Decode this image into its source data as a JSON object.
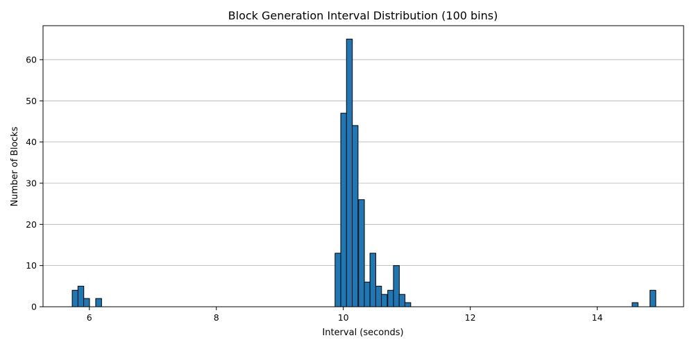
{
  "chart_data": {
    "type": "bar",
    "title": "Block Generation Interval Distribution (100 bins)",
    "xlabel": "Interval (seconds)",
    "ylabel": "Number of Blocks",
    "xlim": [
      5.27,
      15.36
    ],
    "ylim": [
      0,
      68.25
    ],
    "xticks": [
      6,
      8,
      10,
      12,
      14
    ],
    "yticks": [
      0,
      10,
      20,
      30,
      40,
      50,
      60
    ],
    "grid": "y-axis",
    "bin_width": 0.092,
    "bar_color": "#1f77b4",
    "edge_color": "#000000",
    "bins": [
      {
        "x": 5.73,
        "count": 4
      },
      {
        "x": 5.82,
        "count": 5
      },
      {
        "x": 5.91,
        "count": 2
      },
      {
        "x": 6.1,
        "count": 2
      },
      {
        "x": 9.87,
        "count": 13
      },
      {
        "x": 9.96,
        "count": 47
      },
      {
        "x": 10.05,
        "count": 65
      },
      {
        "x": 10.14,
        "count": 44
      },
      {
        "x": 10.24,
        "count": 26
      },
      {
        "x": 10.33,
        "count": 6
      },
      {
        "x": 10.42,
        "count": 13
      },
      {
        "x": 10.51,
        "count": 5
      },
      {
        "x": 10.6,
        "count": 3
      },
      {
        "x": 10.7,
        "count": 4
      },
      {
        "x": 10.79,
        "count": 10
      },
      {
        "x": 10.88,
        "count": 3
      },
      {
        "x": 10.97,
        "count": 1
      },
      {
        "x": 14.55,
        "count": 1
      },
      {
        "x": 14.83,
        "count": 4
      }
    ]
  }
}
